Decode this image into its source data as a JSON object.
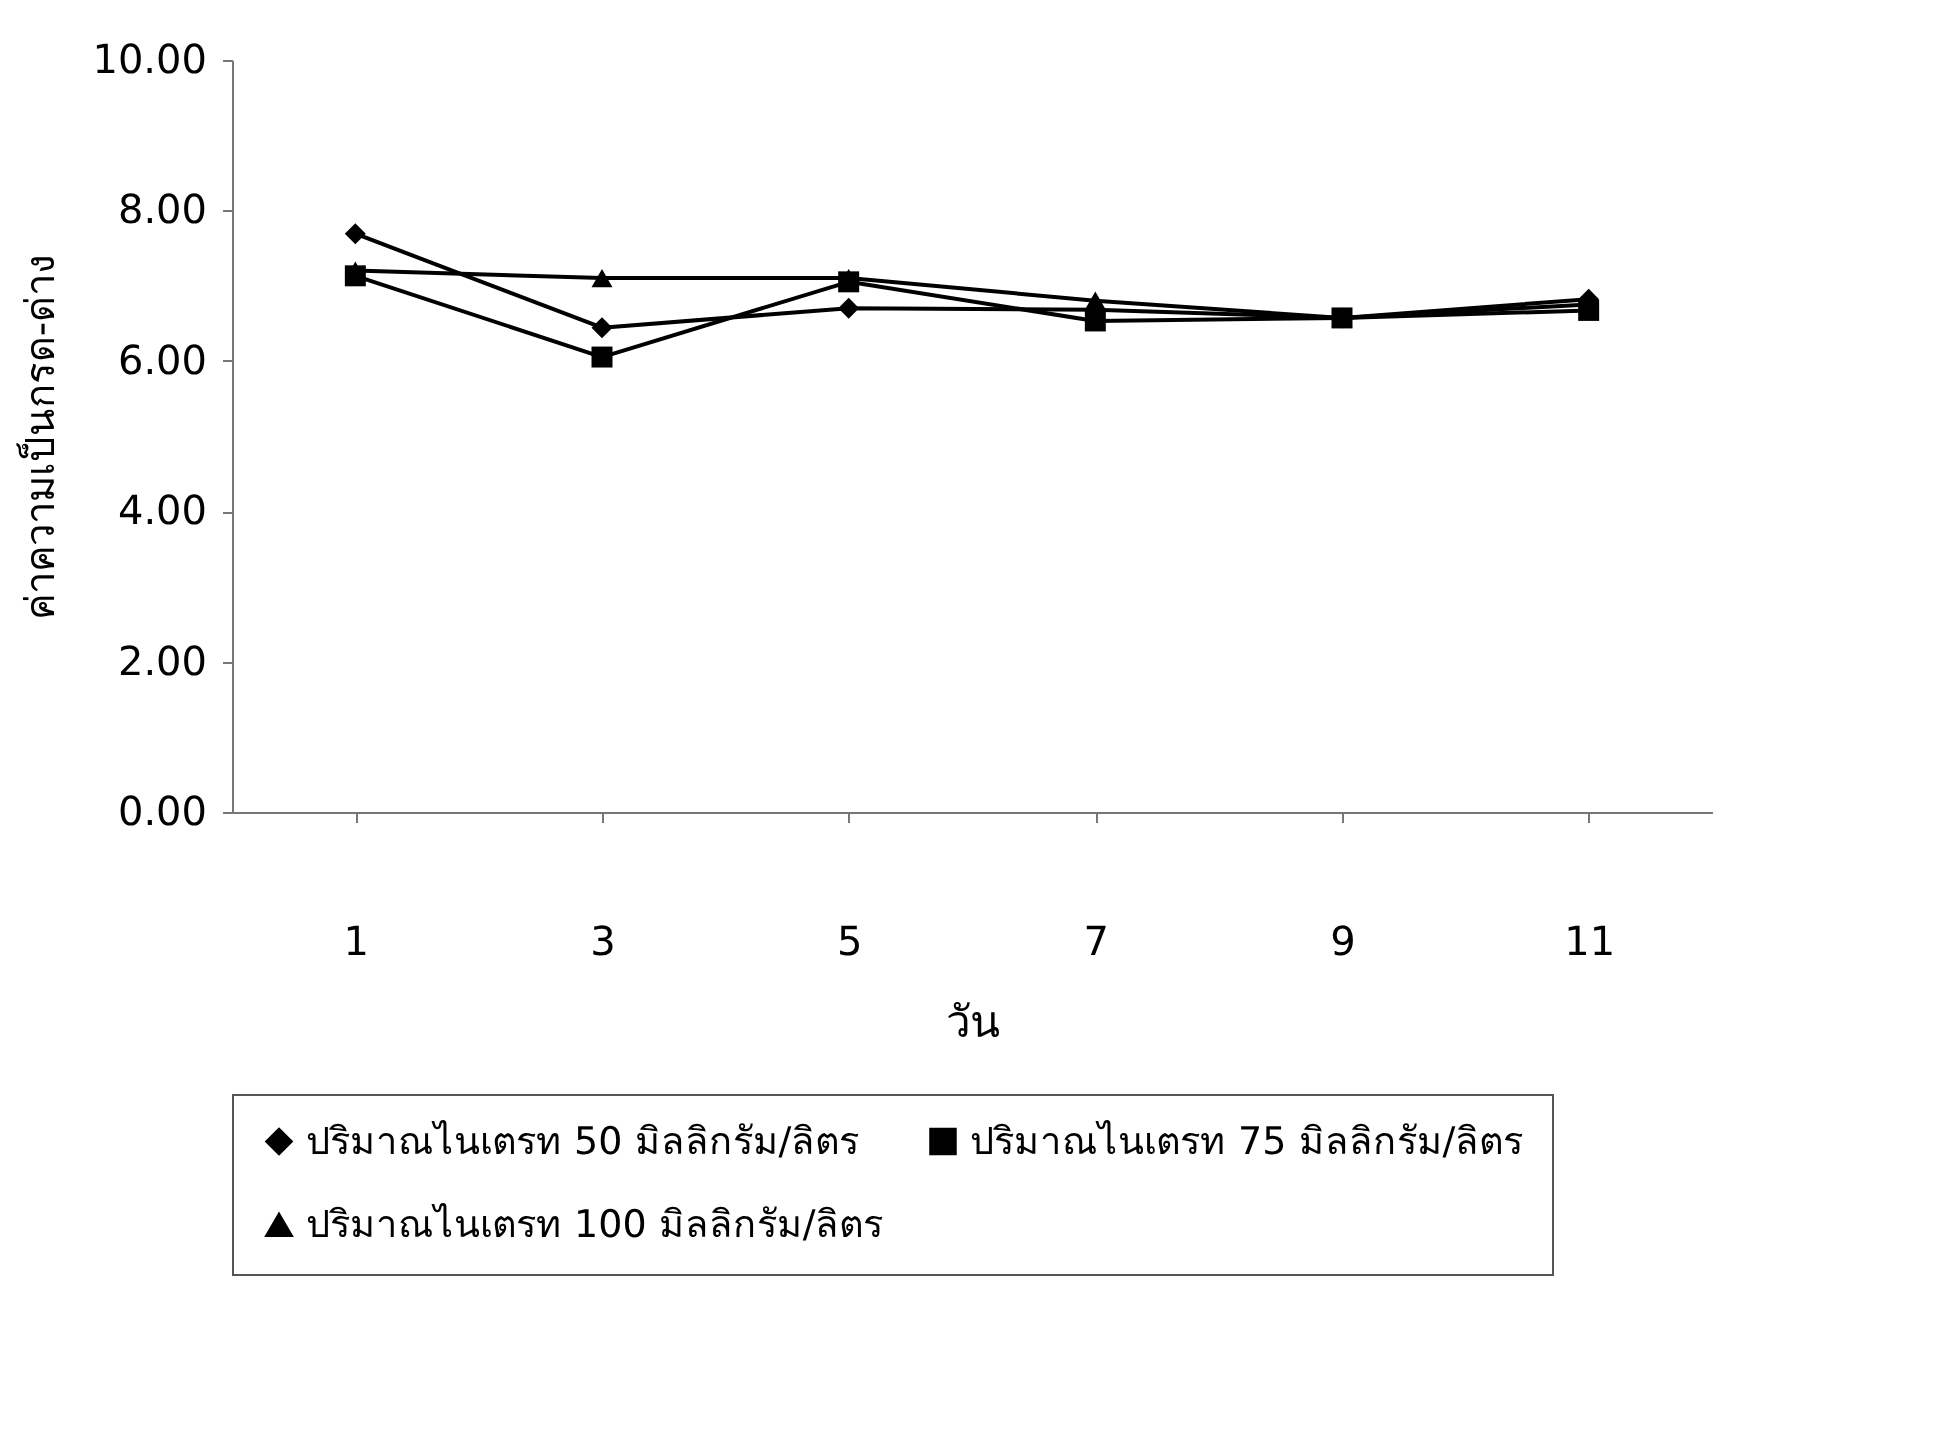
{
  "chart_data": {
    "type": "line",
    "xlabel": "วัน",
    "ylabel": "ค่าความเป็นกรด-ด่าง",
    "categories": [
      "1",
      "3",
      "5",
      "7",
      "9",
      "11"
    ],
    "series": [
      {
        "name": "ปริมาณไนเตรท 50 มิลลิกรัม/ลิตร",
        "color": "#000000",
        "marker": "diamond",
        "values": [
          7.69,
          6.44,
          6.7,
          6.68,
          6.57,
          6.82
        ]
      },
      {
        "name": "ปริมาณไนเตรท 75 มิลลิกรัม/ลิตร",
        "color": "#000000",
        "marker": "square",
        "values": [
          7.13,
          6.05,
          7.05,
          6.53,
          6.57,
          6.67
        ]
      },
      {
        "name": "ปริมาณไนเตรท 100 มิลลิกรัม/ลิตร",
        "color": "#000000",
        "marker": "triangle",
        "values": [
          7.2,
          7.1,
          7.1,
          6.8,
          6.57,
          6.75
        ]
      }
    ],
    "ylim": [
      0,
      10
    ],
    "yticks": [
      {
        "value": 0,
        "label": "0.00"
      },
      {
        "value": 2,
        "label": "2.00"
      },
      {
        "value": 4,
        "label": "4.00"
      },
      {
        "value": 6,
        "label": "6.00"
      },
      {
        "value": 8,
        "label": "8.00"
      },
      {
        "value": 10,
        "label": "10.00"
      }
    ],
    "grid": false,
    "legend": "bottom",
    "line_style": "solid"
  }
}
